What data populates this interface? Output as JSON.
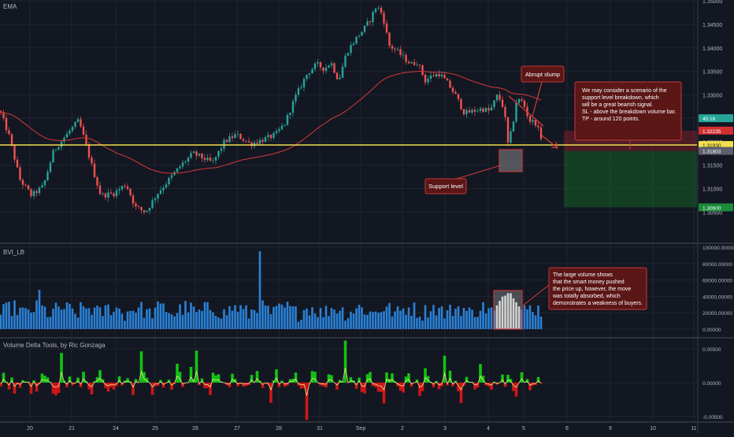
{
  "chart_data": {
    "type": "candlestick",
    "title": "EMA",
    "price_axis": {
      "ylim": [
        1.2985,
        1.3502
      ],
      "ticks": [
        "1.35000",
        "1.34500",
        "1.34000",
        "1.33500",
        "1.33000",
        "1.32500",
        "1.32000",
        "1.31500",
        "1.31000",
        "1.30500"
      ],
      "tick_values": [
        1.35,
        1.345,
        1.34,
        1.335,
        1.33,
        1.325,
        1.32,
        1.315,
        1.31,
        1.305
      ]
    },
    "x_axis": {
      "labels": [
        "20",
        "21",
        "24",
        "25",
        "26",
        "27",
        "28",
        "31",
        "Sep",
        "2",
        "3",
        "4",
        "5",
        "6",
        "9",
        "10",
        "11"
      ]
    },
    "price_badges": [
      {
        "text": "45:16",
        "value": 1.325,
        "color": "#26a69a"
      },
      {
        "text": "1.32235",
        "value": 1.32235,
        "color": "#d32f2f"
      },
      {
        "text": "1.31930",
        "value": 1.3193,
        "color": "#f4e04d"
      },
      {
        "text": "1.31803",
        "value": 1.31803,
        "color": "#5d606b"
      },
      {
        "text": "1.30600",
        "value": 1.306,
        "color": "#1b8a3a"
      }
    ],
    "support_level": 1.3193,
    "ema_line": {
      "color": "#d43a3a"
    },
    "annotations": {
      "abrupt": "Abrupt slump",
      "support": "Support level",
      "scenario": [
        "We may consider a scenario of the",
        "support level breakdown, which",
        "will be a great bearish signal.",
        "SL - above the breakdown volume bar.",
        "TP - around 120 points."
      ],
      "volume_note": [
        "The large volume shows",
        "that the smart money pushed",
        "the price up, however, the move",
        "was totally absorbed, which",
        "demonstrates a weakness of buyers."
      ]
    },
    "position_tool": {
      "entry": 1.318,
      "stop": 1.32235,
      "target": 1.306
    },
    "volume_panel": {
      "title": "BVI_LB",
      "ylim": [
        0,
        100000
      ],
      "ticks": [
        "100000.00000",
        "80000.00000",
        "60000.00000",
        "40000.00000",
        "20000.00000",
        "0.00000"
      ],
      "tick_values": [
        100000,
        80000,
        60000,
        40000,
        20000,
        0
      ],
      "color": "#2a82d8"
    },
    "delta_panel": {
      "title": "Volume Delta Tools, by Ric Gonzaga",
      "ylim": [
        -0.0057,
        0.0065
      ],
      "ticks": [
        "0.00500",
        "0.00000",
        "-0.00500"
      ],
      "tick_values": [
        0.005,
        0,
        -0.005
      ],
      "pos_color": "#13c313",
      "neg_color": "#d01717",
      "line_color": "#f0e68c"
    }
  }
}
